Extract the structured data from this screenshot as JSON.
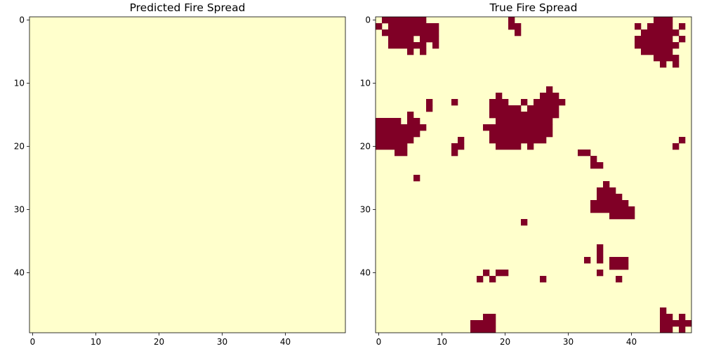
{
  "figure": {
    "colors": {
      "burned": "#800026",
      "unburned": "#ffffcc",
      "axes": "#000000"
    }
  },
  "chart_data": [
    {
      "type": "heatmap",
      "title": "Predicted Fire Spread",
      "xlabel": "",
      "ylabel": "",
      "grid_size": [
        50,
        50
      ],
      "xlim": [
        -0.5,
        49.5
      ],
      "ylim": [
        49.5,
        -0.5
      ],
      "x_ticks": [
        0,
        10,
        20,
        30,
        40
      ],
      "y_ticks": [
        0,
        10,
        20,
        30,
        40
      ],
      "grid": false,
      "cell_values": "all 0 (no fire)",
      "fire_rows": []
    },
    {
      "type": "heatmap",
      "title": "True Fire Spread",
      "xlabel": "",
      "ylabel": "",
      "grid_size": [
        50,
        50
      ],
      "xlim": [
        -0.5,
        49.5
      ],
      "ylim": [
        49.5,
        -0.5
      ],
      "x_ticks": [
        0,
        10,
        20,
        30,
        40
      ],
      "y_ticks": [
        0,
        10,
        20,
        30,
        40
      ],
      "grid": false,
      "cell_values": "1 = fire (listed), 0 = no fire",
      "fire_rows": [
        [
          0,
          [
            [
              1,
              7
            ],
            [
              21,
              21
            ],
            [
              44,
              46
            ]
          ]
        ],
        [
          1,
          [
            [
              0,
              0
            ],
            [
              2,
              9
            ],
            [
              21,
              22
            ],
            [
              41,
              41
            ],
            [
              43,
              46
            ],
            [
              48,
              48
            ]
          ]
        ],
        [
          2,
          [
            [
              1,
              9
            ],
            [
              22,
              22
            ],
            [
              42,
              47
            ]
          ]
        ],
        [
          3,
          [
            [
              2,
              5
            ],
            [
              7,
              9
            ],
            [
              41,
              46
            ],
            [
              48,
              48
            ]
          ]
        ],
        [
          4,
          [
            [
              2,
              5
            ],
            [
              6,
              7
            ],
            [
              9,
              9
            ],
            [
              41,
              47
            ]
          ]
        ],
        [
          5,
          [
            [
              5,
              5
            ],
            [
              7,
              7
            ],
            [
              42,
              46
            ]
          ]
        ],
        [
          6,
          [
            [
              44,
              46
            ],
            [
              47,
              47
            ]
          ]
        ],
        [
          7,
          [
            [
              45,
              45
            ],
            [
              47,
              47
            ]
          ]
        ],
        [
          11,
          [
            [
              27,
              27
            ]
          ]
        ],
        [
          12,
          [
            [
              19,
              19
            ],
            [
              26,
              27
            ],
            [
              28,
              28
            ]
          ]
        ],
        [
          13,
          [
            [
              8,
              8
            ],
            [
              12,
              12
            ],
            [
              18,
              20
            ],
            [
              23,
              23
            ],
            [
              25,
              29
            ]
          ]
        ],
        [
          14,
          [
            [
              8,
              8
            ],
            [
              18,
              22
            ],
            [
              24,
              28
            ]
          ]
        ],
        [
          15,
          [
            [
              5,
              5
            ],
            [
              18,
              22
            ],
            [
              23,
              28
            ]
          ]
        ],
        [
          16,
          [
            [
              0,
              3
            ],
            [
              5,
              6
            ],
            [
              19,
              27
            ]
          ]
        ],
        [
          17,
          [
            [
              0,
              4
            ],
            [
              5,
              7
            ],
            [
              17,
              27
            ]
          ]
        ],
        [
          18,
          [
            [
              0,
              3
            ],
            [
              4,
              6
            ],
            [
              18,
              27
            ]
          ]
        ],
        [
          19,
          [
            [
              0,
              5
            ],
            [
              13,
              13
            ],
            [
              18,
              26
            ],
            [
              48,
              48
            ]
          ]
        ],
        [
          20,
          [
            [
              0,
              4
            ],
            [
              12,
              13
            ],
            [
              19,
              22
            ],
            [
              24,
              24
            ],
            [
              47,
              47
            ]
          ]
        ],
        [
          21,
          [
            [
              3,
              4
            ],
            [
              12,
              12
            ],
            [
              32,
              33
            ]
          ]
        ],
        [
          22,
          [
            [
              34,
              34
            ]
          ]
        ],
        [
          23,
          [
            [
              34,
              35
            ]
          ]
        ],
        [
          25,
          [
            [
              6,
              6
            ]
          ]
        ],
        [
          26,
          [
            [
              36,
              36
            ]
          ]
        ],
        [
          27,
          [
            [
              35,
              37
            ]
          ]
        ],
        [
          28,
          [
            [
              35,
              38
            ]
          ]
        ],
        [
          29,
          [
            [
              34,
              39
            ]
          ]
        ],
        [
          30,
          [
            [
              34,
              36
            ],
            [
              37,
              39
            ],
            [
              40,
              40
            ]
          ]
        ],
        [
          31,
          [
            [
              37,
              40
            ]
          ]
        ],
        [
          32,
          [
            [
              23,
              23
            ]
          ]
        ],
        [
          36,
          [
            [
              35,
              35
            ]
          ]
        ],
        [
          37,
          [
            [
              35,
              35
            ]
          ]
        ],
        [
          38,
          [
            [
              33,
              33
            ],
            [
              35,
              35
            ],
            [
              37,
              39
            ]
          ]
        ],
        [
          39,
          [
            [
              37,
              39
            ]
          ]
        ],
        [
          40,
          [
            [
              17,
              17
            ],
            [
              19,
              20
            ],
            [
              35,
              35
            ]
          ]
        ],
        [
          41,
          [
            [
              16,
              16
            ],
            [
              18,
              18
            ],
            [
              26,
              26
            ],
            [
              38,
              38
            ]
          ]
        ],
        [
          46,
          [
            [
              45,
              45
            ]
          ]
        ],
        [
          47,
          [
            [
              17,
              18
            ],
            [
              45,
              46
            ],
            [
              48,
              48
            ]
          ]
        ],
        [
          48,
          [
            [
              15,
              16
            ],
            [
              17,
              18
            ],
            [
              45,
              48
            ],
            [
              49,
              49
            ]
          ]
        ],
        [
          49,
          [
            [
              15,
              18
            ],
            [
              45,
              46
            ],
            [
              48,
              48
            ]
          ]
        ]
      ]
    }
  ]
}
